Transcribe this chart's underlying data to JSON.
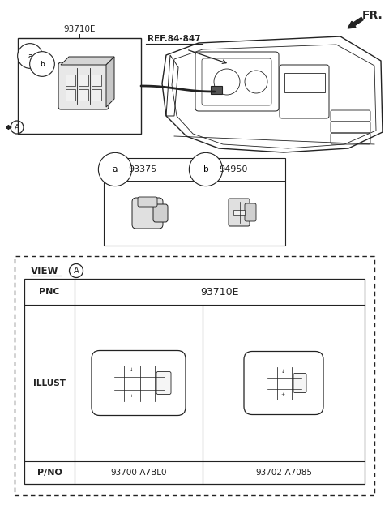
{
  "bg_color": "#ffffff",
  "lc": "#222222",
  "title_fr": "FR.",
  "ref_label": "REF.84-847",
  "part_93710e": "93710E",
  "part_a_num": "93375",
  "part_b_num": "94950",
  "view_label": "VIEW",
  "pnc_label": "PNC",
  "pnc_value": "93710E",
  "illust_label": "ILLUST",
  "pno_label": "P/NO",
  "pno_left": "93700-A7BL0",
  "pno_right": "93702-A7085",
  "fig_w": 4.8,
  "fig_h": 6.23,
  "dpi": 100
}
